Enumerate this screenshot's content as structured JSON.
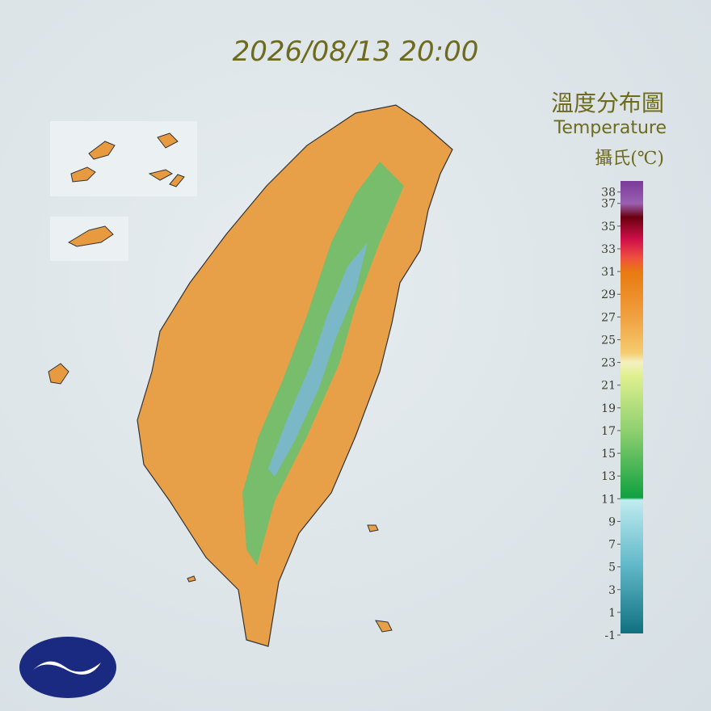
{
  "map": {
    "timestamp": "2026/08/13 20:00",
    "title_zh": "溫度分布圖",
    "title_en": "Temperature",
    "unit": "攝氏(℃)"
  },
  "legend": {
    "ticks": [
      38,
      37,
      35,
      33,
      31,
      29,
      27,
      25,
      23,
      21,
      19,
      17,
      15,
      13,
      11,
      9,
      7,
      5,
      3,
      1,
      -1
    ]
  }
}
